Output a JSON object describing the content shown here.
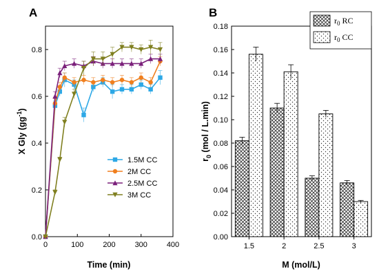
{
  "chart_data": [
    {
      "type": "line",
      "panel": "A",
      "xlabel": "Time (min)",
      "ylabel": "X Gly (gg",
      "ylabel_sup": "-1",
      "ylabel_close": ")",
      "xlim": [
        0,
        400
      ],
      "ylim": [
        0,
        0.9
      ],
      "xticks": [
        0,
        100,
        200,
        300,
        400
      ],
      "yticks": [
        0.0,
        0.2,
        0.4,
        0.6,
        0.8
      ],
      "ytick_labels": [
        "0.0",
        "0.2",
        "0.4",
        "0.6",
        "0.8"
      ],
      "legend_position": "center-right",
      "series": [
        {
          "name": "1.5M CC",
          "color": "#2da8e6",
          "marker": "square",
          "x": [
            0,
            30,
            45,
            60,
            90,
            120,
            150,
            180,
            210,
            240,
            270,
            300,
            330,
            360
          ],
          "y": [
            0,
            0.56,
            0.62,
            0.67,
            0.65,
            0.52,
            0.64,
            0.66,
            0.62,
            0.63,
            0.63,
            0.65,
            0.63,
            0.68
          ],
          "err": [
            0,
            0.02,
            0.02,
            0.03,
            0.02,
            0.03,
            0.02,
            0.02,
            0.03,
            0.02,
            0.02,
            0.02,
            0.02,
            0.03
          ]
        },
        {
          "name": "2M CC",
          "color": "#f07f1e",
          "marker": "circle",
          "x": [
            0,
            30,
            45,
            60,
            90,
            120,
            150,
            180,
            210,
            240,
            270,
            300,
            330,
            360
          ],
          "y": [
            0,
            0.57,
            0.64,
            0.68,
            0.66,
            0.67,
            0.66,
            0.67,
            0.66,
            0.67,
            0.66,
            0.68,
            0.66,
            0.75
          ],
          "err": [
            0,
            0.02,
            0.02,
            0.02,
            0.02,
            0.02,
            0.02,
            0.02,
            0.02,
            0.02,
            0.02,
            0.02,
            0.02,
            0.02
          ]
        },
        {
          "name": "2.5M CC",
          "color": "#7a1f7a",
          "marker": "triangle-up",
          "x": [
            0,
            30,
            45,
            60,
            90,
            120,
            150,
            180,
            210,
            240,
            270,
            300,
            330,
            360
          ],
          "y": [
            0,
            0.6,
            0.7,
            0.73,
            0.74,
            0.73,
            0.75,
            0.74,
            0.74,
            0.74,
            0.74,
            0.74,
            0.76,
            0.76
          ],
          "err": [
            0,
            0.02,
            0.02,
            0.02,
            0.02,
            0.02,
            0.02,
            0.02,
            0.02,
            0.02,
            0.02,
            0.02,
            0.02,
            0.02
          ]
        },
        {
          "name": "3M CC",
          "color": "#7f7f1f",
          "marker": "triangle-down",
          "x": [
            0,
            30,
            45,
            60,
            90,
            120,
            150,
            180,
            210,
            240,
            270,
            300,
            330,
            360
          ],
          "y": [
            0,
            0.19,
            0.33,
            0.49,
            0.61,
            0.72,
            0.76,
            0.76,
            0.78,
            0.81,
            0.81,
            0.8,
            0.81,
            0.8
          ],
          "err": [
            0,
            0.01,
            0.01,
            0.02,
            0.02,
            0.03,
            0.03,
            0.03,
            0.03,
            0.02,
            0.02,
            0.02,
            0.03,
            0.03
          ]
        }
      ]
    },
    {
      "type": "bar",
      "panel": "B",
      "xlabel": "M (mol/L)",
      "ylabel": "r",
      "ylabel_sub": "0",
      "ylabel_rest": " (mol / L.min)",
      "categories": [
        "1.5",
        "2",
        "2.5",
        "3"
      ],
      "ylim": [
        0,
        0.18
      ],
      "yticks": [
        0,
        0.02,
        0.04,
        0.06,
        0.08,
        0.1,
        0.12,
        0.14,
        0.16,
        0.18
      ],
      "ytick_labels": [
        "0.00",
        "0.02",
        "0.04",
        "0.06",
        "0.08",
        "0.10",
        "0.12",
        "0.14",
        "0.16",
        "0.18"
      ],
      "legend_position": "top-right",
      "series": [
        {
          "name": "r0 RC",
          "label_main": "r",
          "label_sub": "0",
          "label_rest": " RC",
          "pattern": "crosshatch",
          "values": [
            0.082,
            0.11,
            0.05,
            0.046
          ],
          "err": [
            0.003,
            0.004,
            0.002,
            0.002
          ]
        },
        {
          "name": "r0 CC",
          "label_main": "r",
          "label_sub": "0",
          "label_rest": " CC",
          "pattern": "dots",
          "values": [
            0.156,
            0.141,
            0.105,
            0.03
          ],
          "err": [
            0.006,
            0.006,
            0.003,
            0.001
          ]
        }
      ]
    }
  ]
}
